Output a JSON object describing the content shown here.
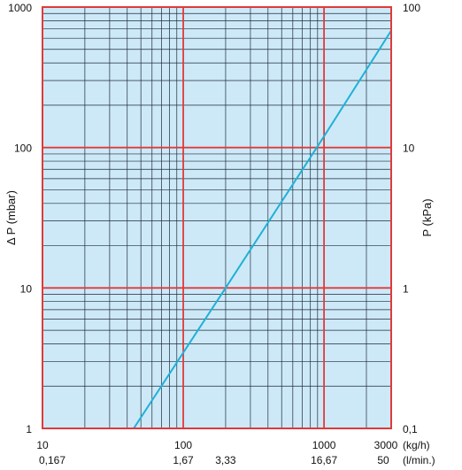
{
  "chart_data": {
    "type": "line",
    "xscale": "log",
    "yscale": "log",
    "xlim": [
      10,
      3000
    ],
    "ylim": [
      1,
      1000
    ],
    "grid": true,
    "xlabel": "",
    "ylabel": "Δ P (mbar)",
    "ylabel_right": "P (kPa)",
    "x_ticks": [
      {
        "value": 10,
        "label": "10"
      },
      {
        "value": 100,
        "label": "100"
      },
      {
        "value": 1000,
        "label": "1000"
      },
      {
        "value": 3000,
        "label": "3000"
      }
    ],
    "x_unit": "(kg/h)",
    "x2_ticks": [
      {
        "value": 10,
        "label": "0,167"
      },
      {
        "value": 100,
        "label": "1,67"
      },
      {
        "value": 200,
        "label": "3,33"
      },
      {
        "value": 1000,
        "label": "16,67"
      },
      {
        "value": 3000,
        "label": "50"
      }
    ],
    "x2_unit": "(l/min.)",
    "y_ticks": [
      {
        "value": 1,
        "label": "1"
      },
      {
        "value": 10,
        "label": "10"
      },
      {
        "value": 100,
        "label": "100"
      },
      {
        "value": 1000,
        "label": "1000"
      }
    ],
    "y2_ticks": [
      {
        "value": 1,
        "label": "0,1"
      },
      {
        "value": 10,
        "label": "1"
      },
      {
        "value": 100,
        "label": "10"
      },
      {
        "value": 1000,
        "label": "100"
      }
    ],
    "series": [
      {
        "points": [
          [
            44.5,
            1
          ],
          [
            200,
            10
          ],
          [
            1000,
            120
          ],
          [
            3000,
            680
          ]
        ]
      }
    ],
    "colors": {
      "plot_bg": "#cde9f8",
      "major_grid": "#e03a3a",
      "minor_grid": "#1e2a38",
      "line": "#1fb1d6"
    }
  }
}
